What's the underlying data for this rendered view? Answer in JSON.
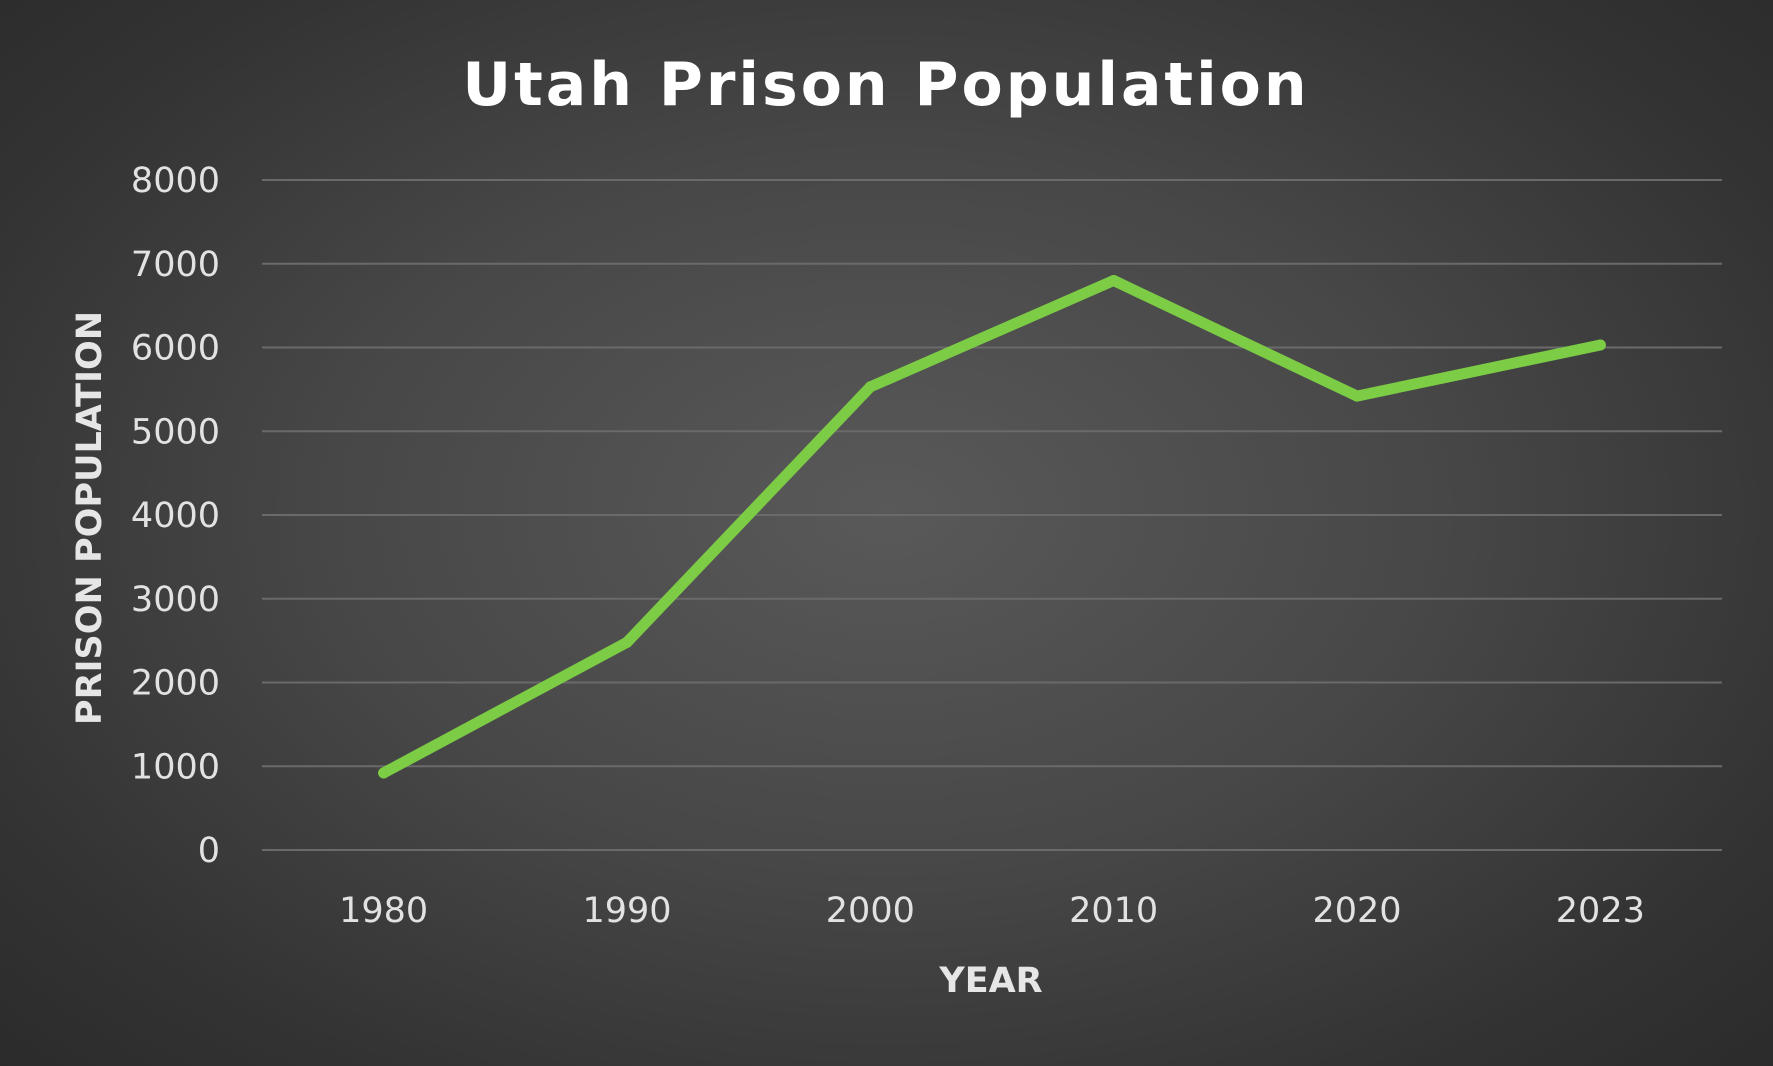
{
  "chart_data": {
    "type": "line",
    "title": "Utah Prison Population",
    "xlabel": "YEAR",
    "ylabel": "PRISON POPULATION",
    "categories": [
      "1980",
      "1990",
      "2000",
      "2010",
      "2020",
      "2023"
    ],
    "series": [
      {
        "values": [
          920,
          2480,
          5530,
          6800,
          5420,
          6030
        ],
        "color": "#7dcc45"
      }
    ],
    "ylim": [
      0,
      8000
    ],
    "yticks": [
      "0",
      "1000",
      "2000",
      "3000",
      "4000",
      "5000",
      "6000",
      "7000",
      "8000"
    ],
    "grid": true,
    "legend": "none"
  }
}
